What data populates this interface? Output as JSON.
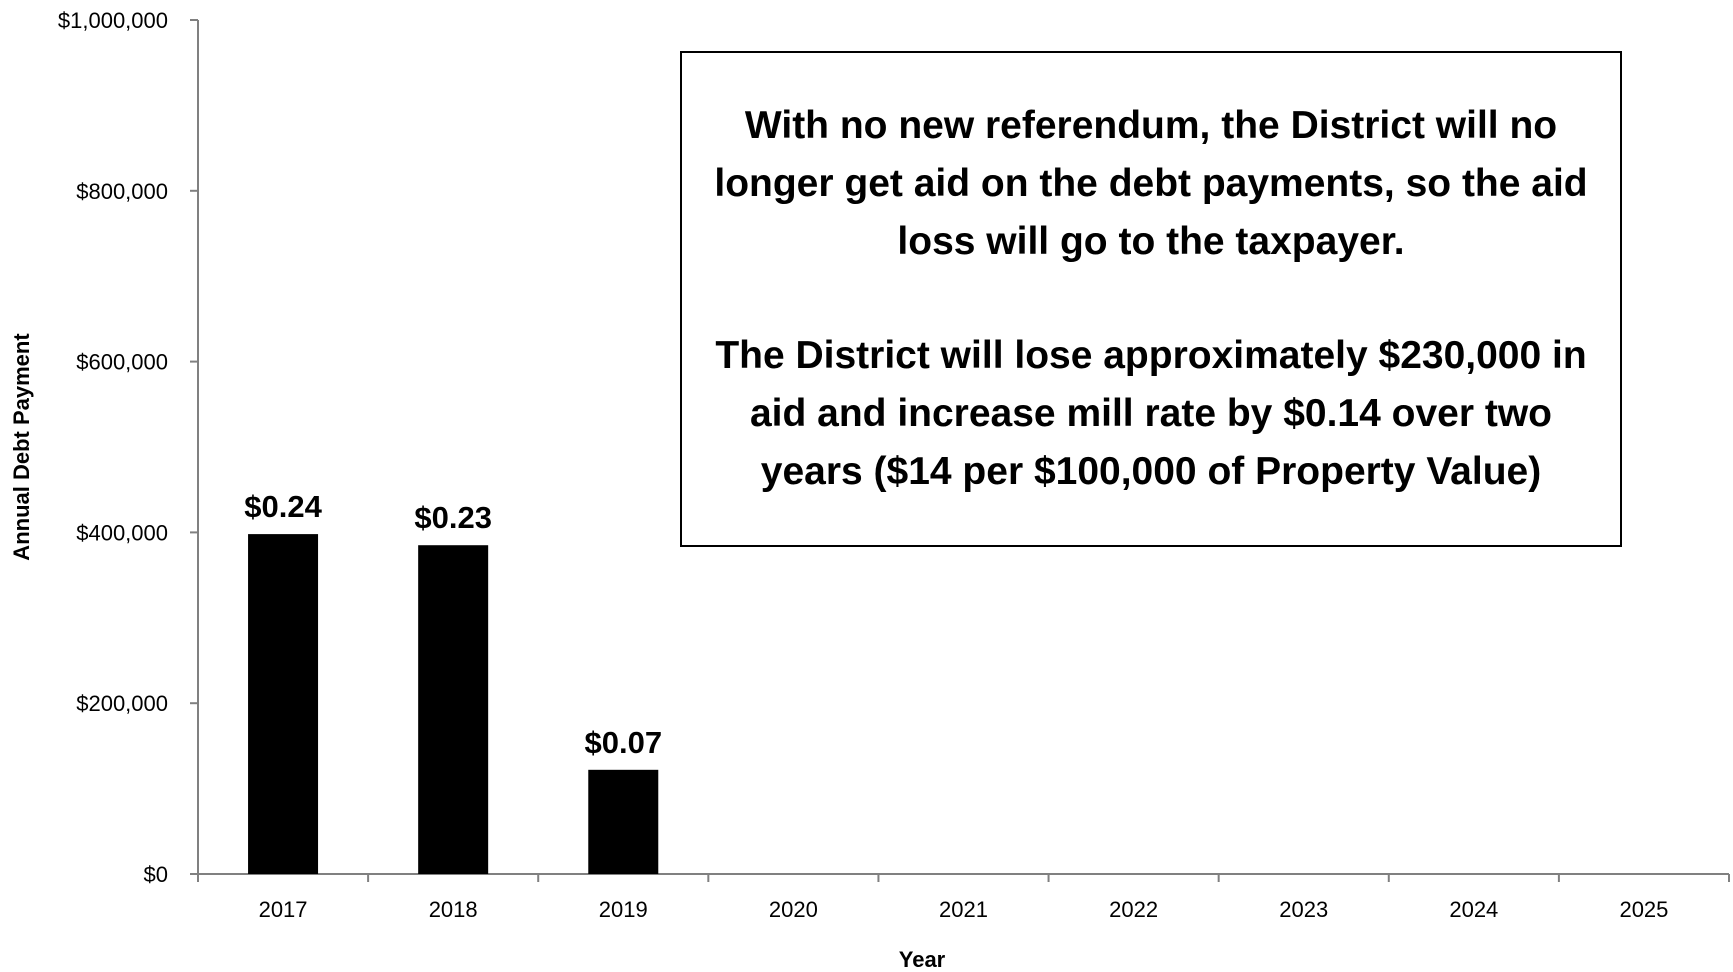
{
  "chart_data": {
    "type": "bar",
    "title": "",
    "xlabel": "Year",
    "ylabel": "Annual Debt Payment",
    "categories": [
      "2017",
      "2018",
      "2019",
      "2020",
      "2021",
      "2022",
      "2023",
      "2024",
      "2025"
    ],
    "series": [
      {
        "values": [
          398000,
          385000,
          122000,
          0,
          0,
          0,
          0,
          0,
          0
        ]
      }
    ],
    "data_labels": [
      "$0.24",
      "$0.23",
      "$0.07",
      "",
      "",
      "",
      "",
      "",
      ""
    ],
    "y_ticks": [
      "$0",
      "$200,000",
      "$400,000",
      "$600,000",
      "$800,000",
      "$1,000,000"
    ],
    "ylim": [
      0,
      1000000
    ],
    "grid": false,
    "legend": "none",
    "bar_color": "#000000",
    "annotation": {
      "paragraph1": "With no new referendum, the District will no longer get aid on the debt payments, so the aid loss will go to the taxpayer.",
      "paragraph2": "The District will lose approximately $230,000 in aid and increase mill rate by $0.14 over two years ($14 per $100,000 of Property Value)"
    }
  }
}
